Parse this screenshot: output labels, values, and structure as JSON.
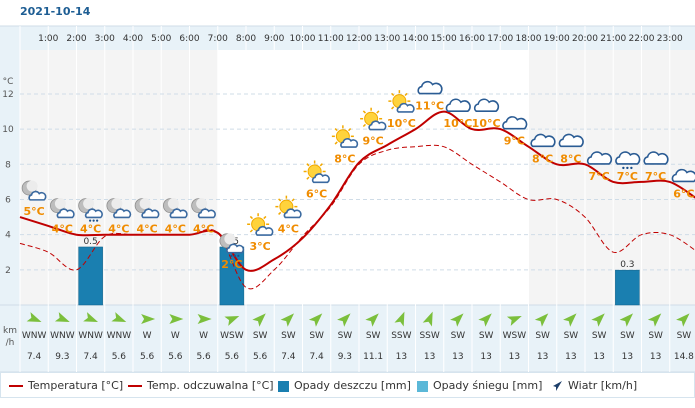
{
  "date": "2021-10-14",
  "hours": [
    "1:00",
    "2:00",
    "3:00",
    "4:00",
    "5:00",
    "6:00",
    "7:00",
    "8:00",
    "9:00",
    "10:00",
    "11:00",
    "12:00",
    "13:00",
    "14:00",
    "15:00",
    "16:00",
    "17:00",
    "18:00",
    "19:00",
    "20:00",
    "21:00",
    "22:00",
    "23:00"
  ],
  "y_axis": {
    "unit": "°C",
    "ticks": [
      2,
      4,
      6,
      8,
      10,
      12
    ]
  },
  "wind_unit": "km\n/h",
  "colors": {
    "temperature": "#c00000",
    "felt": "#c00000",
    "rain": "#1a7fb0",
    "snow": "#5bb8d8",
    "wind_arrow": "#7bbf3c",
    "grid": "#cfdce7",
    "header": "#e8f2f8",
    "temp_label": "#f08c00"
  },
  "chart_data": {
    "type": "line",
    "title": "2021-10-14",
    "x_hours": [
      0,
      1,
      2,
      3,
      4,
      5,
      6,
      7,
      8,
      9,
      10,
      11,
      12,
      13,
      14,
      15,
      16,
      17,
      18,
      19,
      20,
      21,
      22,
      23,
      24
    ],
    "series": [
      {
        "name": "Temperatura [°C]",
        "values": [
          5,
          4.5,
          4,
          4,
          4,
          4,
          4,
          4.1,
          2,
          2.6,
          3.8,
          5.7,
          8.1,
          9.1,
          10,
          11,
          10,
          10,
          9,
          8,
          8,
          7,
          7,
          7,
          6
        ]
      },
      {
        "name": "Temp. odczuwalna [°C]",
        "values": [
          3.5,
          3,
          2,
          3.9,
          4,
          4,
          4,
          4.1,
          1,
          2,
          3.9,
          5.6,
          8,
          8.8,
          9,
          9,
          8,
          7,
          6,
          6,
          5,
          3,
          4,
          4,
          3
        ]
      }
    ],
    "temp_labels": [
      {
        "hour": 0.5,
        "temp": 5,
        "text": "5°C"
      },
      {
        "hour": 1.5,
        "temp": 4,
        "text": "4°C"
      },
      {
        "hour": 2.5,
        "temp": 4,
        "text": "4°C"
      },
      {
        "hour": 3.5,
        "temp": 4,
        "text": "4°C"
      },
      {
        "hour": 4.5,
        "temp": 4,
        "text": "4°C"
      },
      {
        "hour": 5.5,
        "temp": 4,
        "text": "4°C"
      },
      {
        "hour": 6.5,
        "temp": 4,
        "text": "4°C"
      },
      {
        "hour": 7.5,
        "temp": 2,
        "text": "2°C"
      },
      {
        "hour": 8.5,
        "temp": 3,
        "text": "3°C"
      },
      {
        "hour": 9.5,
        "temp": 4,
        "text": "4°C"
      },
      {
        "hour": 10.5,
        "temp": 6,
        "text": "6°C"
      },
      {
        "hour": 11.5,
        "temp": 8,
        "text": "8°C"
      },
      {
        "hour": 12.5,
        "temp": 9,
        "text": "9°C"
      },
      {
        "hour": 13.5,
        "temp": 10,
        "text": "10°C"
      },
      {
        "hour": 14.5,
        "temp": 11,
        "text": "11°C"
      },
      {
        "hour": 15.5,
        "temp": 10,
        "text": "10°C"
      },
      {
        "hour": 16.5,
        "temp": 10,
        "text": "10°C"
      },
      {
        "hour": 17.5,
        "temp": 9,
        "text": "9°C"
      },
      {
        "hour": 18.5,
        "temp": 8,
        "text": "8°C"
      },
      {
        "hour": 19.5,
        "temp": 8,
        "text": "8°C"
      },
      {
        "hour": 20.5,
        "temp": 7,
        "text": "7°C"
      },
      {
        "hour": 21.5,
        "temp": 7,
        "text": "7°C"
      },
      {
        "hour": 22.5,
        "temp": 7,
        "text": "7°C"
      },
      {
        "hour": 23.5,
        "temp": 6,
        "text": "6°C"
      }
    ],
    "precipitation": [
      {
        "hour": 2.5,
        "value": 0.5,
        "label": "0.5"
      },
      {
        "hour": 7.5,
        "value": 0.5,
        "label": "0.5"
      },
      {
        "hour": 21.5,
        "value": 0.3,
        "label": "0.3"
      }
    ],
    "weather_icons": [
      "night-cloud",
      "night-cloud",
      "night-rain",
      "night-cloud",
      "night-cloud",
      "night-cloud",
      "night-cloud",
      "night-rain",
      "sun-cloud",
      "sun-cloud",
      "sun-cloud",
      "sun-cloud",
      "sun-cloud",
      "sun-cloud",
      "cloud",
      "cloud",
      "cloud",
      "cloud",
      "cloud",
      "cloud",
      "cloud",
      "cloud-rain",
      "cloud",
      "cloud"
    ],
    "wind": {
      "directions": [
        "WNW",
        "WNW",
        "WNW",
        "WNW",
        "W",
        "W",
        "W",
        "WSW",
        "SW",
        "SW",
        "SW",
        "SW",
        "SW",
        "SSW",
        "SSW",
        "SW",
        "SW",
        "WSW",
        "SW",
        "SW",
        "SW",
        "SW",
        "SW",
        "SW"
      ],
      "speeds": [
        "7.4",
        "9.3",
        "7.4",
        "5.6",
        "5.6",
        "5.6",
        "5.6",
        "5.6",
        "5.6",
        "7.4",
        "7.4",
        "9.3",
        "11.1",
        "13",
        "13",
        "13",
        "13",
        "13",
        "13",
        "13",
        "13",
        "13",
        "13",
        "14.8"
      ]
    },
    "ylim": [
      0,
      14.5
    ],
    "grid": true,
    "legend_position": "bottom"
  },
  "legend": [
    {
      "label": "Temperatura [°C]",
      "kind": "line"
    },
    {
      "label": "Temp. odczuwalna [°C]",
      "kind": "line"
    },
    {
      "label": "Opady deszczu [mm]",
      "kind": "rain"
    },
    {
      "label": "Opady śniegu [mm]",
      "kind": "snow"
    },
    {
      "label": "Wiatr [km/h]",
      "kind": "wind"
    }
  ]
}
